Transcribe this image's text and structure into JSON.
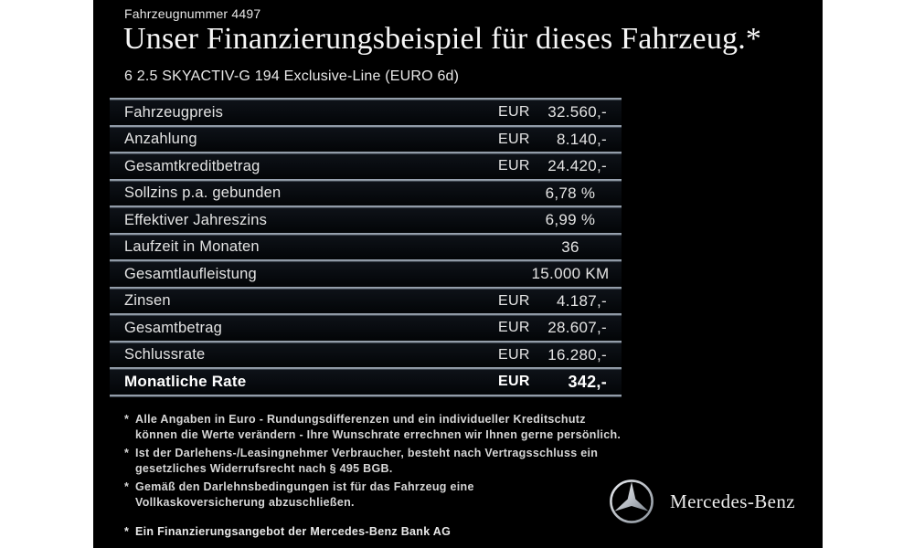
{
  "header": {
    "vehicle_number": "Fahrzeugnummer 4497",
    "title": "Unser Finanzierungsbeispiel für dieses Fahrzeug.*",
    "model": "6 2.5 SKYACTIV-G 194 Exclusive-Line (EURO 6d)"
  },
  "finance_table": {
    "rows": [
      {
        "label": "Fahrzeugpreis",
        "currency": "EUR",
        "value": "32.560,-"
      },
      {
        "label": "Anzahlung",
        "currency": "EUR",
        "value": "8.140,-"
      },
      {
        "label": "Gesamtkreditbetrag",
        "currency": "EUR",
        "value": "24.420,-"
      },
      {
        "label": "Sollzins p.a. gebunden",
        "currency": "",
        "value": "6,78 %",
        "align": "center"
      },
      {
        "label": "Effektiver Jahreszins",
        "currency": "",
        "value": "6,99 %",
        "align": "center"
      },
      {
        "label": "Laufzeit in Monaten",
        "currency": "",
        "value": "36",
        "align": "center"
      },
      {
        "label": "Gesamtlaufleistung",
        "currency": "",
        "value": "15.000 KM",
        "align": "center"
      },
      {
        "label": "Zinsen",
        "currency": "EUR",
        "value": "4.187,-"
      },
      {
        "label": "Gesamtbetrag",
        "currency": "EUR",
        "value": "28.607,-"
      },
      {
        "label": "Schlussrate",
        "currency": "EUR",
        "value": "16.280,-"
      },
      {
        "label": "Monatliche Rate",
        "currency": "EUR",
        "value": "342,-",
        "bold": true
      }
    ]
  },
  "footnote_marker": "*",
  "footnotes": [
    {
      "text": "Alle Angaben in Euro - Rundungsdifferenzen und ein individueller Kreditschutz\nkönnen die Werte verändern - Ihre Wunschrate errechnen wir Ihnen gerne persönlich."
    },
    {
      "text": "Ist der Darlehens-/Leasingnehmer Verbraucher, besteht nach Vertragsschluss ein\ngesetzliches Widerrufsrecht nach § 495 BGB."
    },
    {
      "text": "Gemäß den Darlehnsbedingungen ist für das Fahrzeug eine\nVollkaskoversicherung abzuschließen."
    },
    {
      "text": "Ein Finanzierungsangebot der Mercedes-Benz Bank AG",
      "bold": true,
      "gap": true
    }
  ],
  "footer": {
    "brand": "Mercedes-Benz"
  },
  "icons": {
    "star": "mercedes-star-icon"
  },
  "colors": {
    "page_background": "#ffffff",
    "panel_background": "#000000",
    "text": "#e9e9e9",
    "separator": "#8f9aa6",
    "star_silver": "#c9ccd0"
  }
}
